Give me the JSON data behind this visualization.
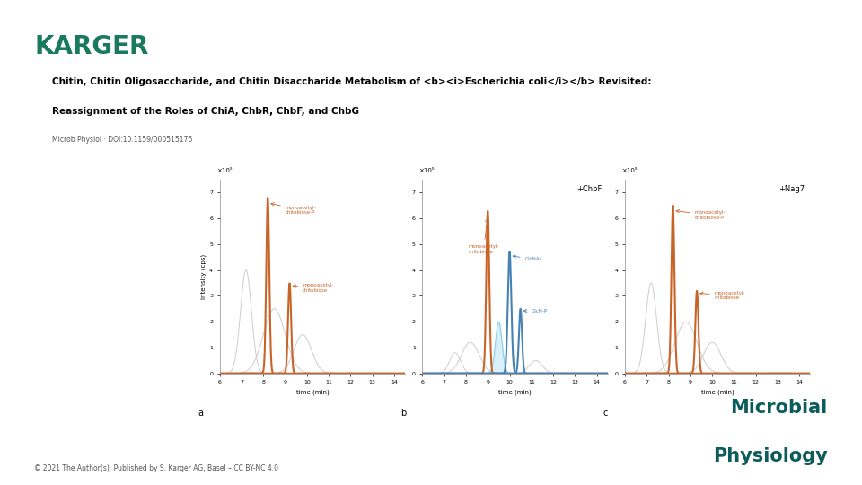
{
  "bg_color": "#ffffff",
  "karger_color": "#1a7a5e",
  "karger_text": "KARGER",
  "title_line1": "Chitin, Chitin Oligosaccharide, and Chitin Disaccharide Metabolism of <b><i>Escherichia coli</i></b> Revisited:",
  "title_line2": "Reassignment of the Roles of ChiA, ChbR, ChbF, and ChbG",
  "subtitle": "Microb Physiol · DOI:10.1159/000515176",
  "footer": "© 2021 The Author(s). Published by S. Karger AG, Basel – CC BY-NC 4.0",
  "journal_name_line1": "Microbial",
  "journal_name_line2": "Physiology",
  "journal_color": "#0d5c5c",
  "orange_color": "#c86428",
  "blue_color": "#4682b4",
  "light_blue_color": "#87ceeb",
  "light_gray": "#c0c0c0",
  "dark_gray": "#888888"
}
